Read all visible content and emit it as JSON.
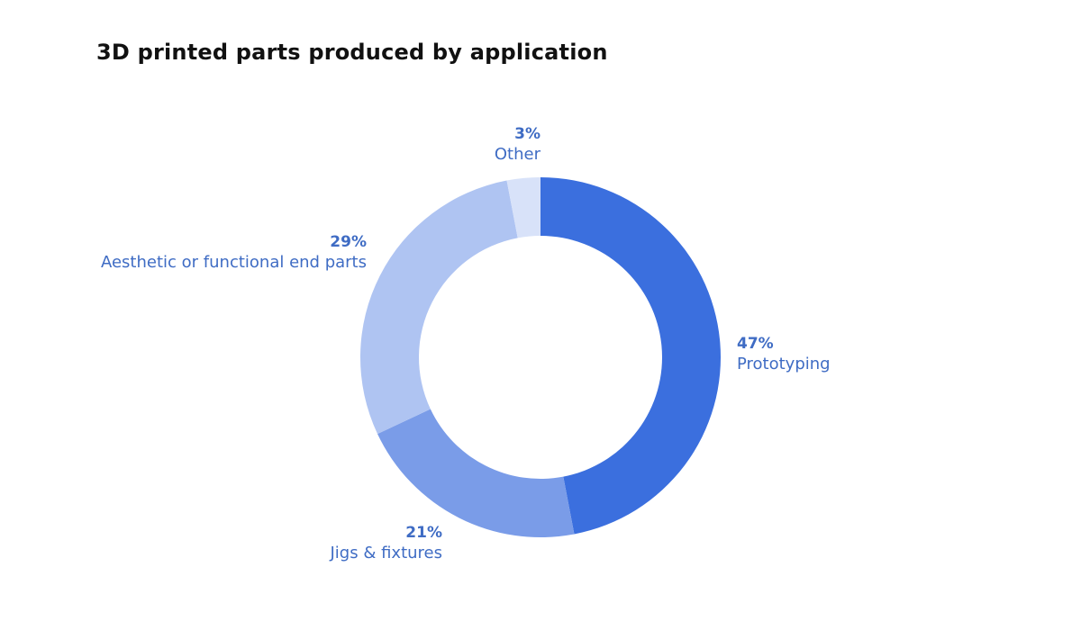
{
  "chart_data": {
    "type": "pie",
    "title": "3D printed parts produced by application",
    "donut": true,
    "slices": [
      {
        "label": "Prototyping",
        "value": 47,
        "display": "47%",
        "color": "#3b6fde"
      },
      {
        "label": "Jigs & fixtures",
        "value": 21,
        "display": "21%",
        "color": "#7a9ce8"
      },
      {
        "label": "Aesthetic or functional end parts",
        "value": 29,
        "display": "29%",
        "color": "#afc4f2"
      },
      {
        "label": "Other",
        "value": 3,
        "display": "3%",
        "color": "#d8e2f9"
      }
    ],
    "label_color": "#3f6cc4",
    "start": "12 o'clock",
    "direction": "clockwise",
    "legend": "none"
  }
}
